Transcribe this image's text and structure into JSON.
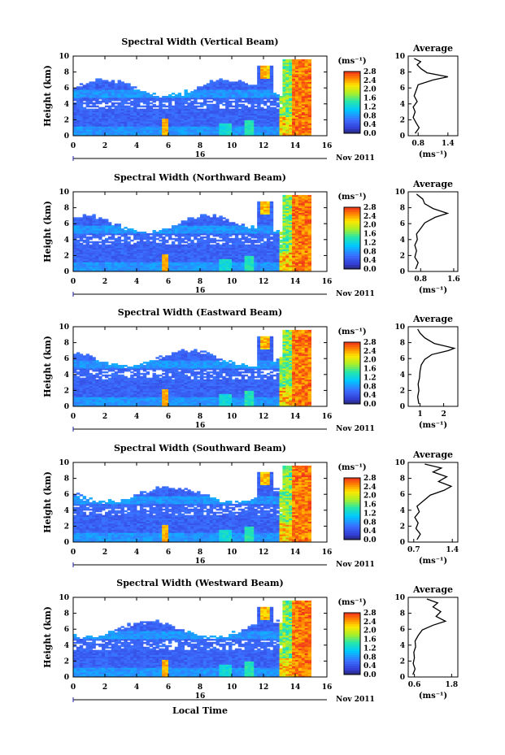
{
  "figure": {
    "xlabel": "Local Time",
    "colorbar_unit": "(ms⁻¹)",
    "average_title": "Average",
    "average_xlabel": "(ms⁻¹)",
    "ylabel": "Height (km)"
  },
  "chart_data": [
    {
      "type": "heatmap",
      "title": "Spectral Width (Vertical Beam)",
      "xlabel": "",
      "ylabel": "Height (km)",
      "x_ticks": [
        "0",
        "2",
        "4",
        "6",
        "8",
        "10",
        "12",
        "14",
        "16"
      ],
      "y_ticks": [
        "0",
        "2",
        "4",
        "6",
        "8",
        "10"
      ],
      "xlim": [
        0,
        16
      ],
      "ylim": [
        0,
        10
      ],
      "date_label": "Nov 2011",
      "date_day": "16",
      "colorbar": {
        "ticks": [
          "0.0",
          "0.4",
          "0.8",
          "1.2",
          "1.6",
          "2.0",
          "2.4",
          "2.8"
        ],
        "range": [
          0,
          2.8
        ]
      },
      "average": {
        "type": "line",
        "title": "Average",
        "xlabel": "(ms⁻¹)",
        "x_ticks": [
          "0.8",
          "1.4"
        ],
        "xlim": [
          0.6,
          1.6
        ],
        "ylim": [
          0,
          10
        ],
        "points": [
          [
            0.74,
            0.3
          ],
          [
            0.82,
            1.0
          ],
          [
            0.76,
            1.6
          ],
          [
            0.7,
            2.3
          ],
          [
            0.74,
            3.0
          ],
          [
            0.7,
            3.6
          ],
          [
            0.78,
            4.3
          ],
          [
            0.72,
            5.0
          ],
          [
            0.76,
            5.7
          ],
          [
            0.8,
            6.4
          ],
          [
            1.1,
            7.0
          ],
          [
            1.4,
            7.4
          ],
          [
            0.98,
            7.9
          ],
          [
            0.86,
            8.4
          ],
          [
            0.78,
            8.9
          ],
          [
            0.85,
            9.3
          ],
          [
            0.72,
            9.7
          ]
        ]
      }
    },
    {
      "type": "heatmap",
      "title": "Spectral Width (Northward Beam)",
      "xlabel": "",
      "ylabel": "Height (km)",
      "x_ticks": [
        "0",
        "2",
        "4",
        "6",
        "8",
        "10",
        "12",
        "14",
        "16"
      ],
      "y_ticks": [
        "0",
        "2",
        "4",
        "6",
        "8",
        "10"
      ],
      "xlim": [
        0,
        16
      ],
      "ylim": [
        0,
        10
      ],
      "date_label": "Nov 2011",
      "date_day": "16",
      "colorbar": {
        "ticks": [
          "0.0",
          "0.4",
          "0.8",
          "1.2",
          "1.6",
          "2.0",
          "2.4",
          "2.8"
        ],
        "range": [
          0,
          2.8
        ]
      },
      "average": {
        "type": "line",
        "title": "Average",
        "xlabel": "(ms⁻¹)",
        "x_ticks": [
          "0.8",
          "1.6"
        ],
        "xlim": [
          0.5,
          1.7
        ],
        "ylim": [
          0,
          10
        ],
        "points": [
          [
            0.68,
            0.3
          ],
          [
            0.74,
            1.1
          ],
          [
            0.66,
            1.8
          ],
          [
            0.7,
            2.6
          ],
          [
            0.66,
            3.3
          ],
          [
            0.72,
            4.0
          ],
          [
            0.7,
            4.7
          ],
          [
            0.8,
            5.4
          ],
          [
            0.9,
            6.1
          ],
          [
            1.15,
            6.8
          ],
          [
            1.45,
            7.3
          ],
          [
            1.1,
            7.9
          ],
          [
            0.9,
            8.5
          ],
          [
            0.85,
            9.1
          ],
          [
            0.7,
            9.7
          ]
        ]
      }
    },
    {
      "type": "heatmap",
      "title": "Spectral Width (Eastward Beam)",
      "xlabel": "",
      "ylabel": "Height (km)",
      "x_ticks": [
        "0",
        "2",
        "4",
        "6",
        "8",
        "10",
        "12",
        "14",
        "16"
      ],
      "y_ticks": [
        "0",
        "2",
        "4",
        "6",
        "8",
        "10"
      ],
      "xlim": [
        0,
        16
      ],
      "ylim": [
        0,
        10
      ],
      "date_label": "Nov 2011",
      "date_day": "16",
      "colorbar": {
        "ticks": [
          "0.0",
          "0.4",
          "0.8",
          "1.2",
          "1.6",
          "2.0",
          "2.4",
          "2.8"
        ],
        "range": [
          0,
          2.8
        ]
      },
      "average": {
        "type": "line",
        "title": "Average",
        "xlabel": "(ms⁻¹)",
        "x_ticks": [
          "1",
          "2"
        ],
        "xlim": [
          0.5,
          2.6
        ],
        "ylim": [
          0,
          10
        ],
        "points": [
          [
            0.95,
            0.3
          ],
          [
            0.9,
            1.2
          ],
          [
            0.95,
            2.0
          ],
          [
            0.92,
            2.8
          ],
          [
            0.98,
            3.6
          ],
          [
            1.0,
            4.4
          ],
          [
            1.05,
            5.2
          ],
          [
            1.2,
            5.9
          ],
          [
            1.5,
            6.5
          ],
          [
            2.2,
            7.0
          ],
          [
            2.45,
            7.3
          ],
          [
            1.6,
            7.9
          ],
          [
            1.2,
            8.6
          ],
          [
            1.0,
            9.2
          ],
          [
            0.9,
            9.7
          ]
        ]
      }
    },
    {
      "type": "heatmap",
      "title": "Spectral Width (Southward Beam)",
      "xlabel": "",
      "ylabel": "Height (km)",
      "x_ticks": [
        "0",
        "2",
        "4",
        "6",
        "8",
        "10",
        "12",
        "14",
        "16"
      ],
      "y_ticks": [
        "0",
        "2",
        "4",
        "6",
        "8",
        "10"
      ],
      "xlim": [
        0,
        16
      ],
      "ylim": [
        0,
        10
      ],
      "date_label": "Nov 2011",
      "date_day": "16",
      "colorbar": {
        "ticks": [
          "0.0",
          "0.4",
          "0.8",
          "1.2",
          "1.6",
          "2.0",
          "2.4",
          "2.8"
        ],
        "range": [
          0,
          2.8
        ]
      },
      "average": {
        "type": "line",
        "title": "Average",
        "xlabel": "(ms⁻¹)",
        "x_ticks": [
          "0.7",
          "1.4"
        ],
        "xlim": [
          0.6,
          1.5
        ],
        "ylim": [
          0,
          10
        ],
        "points": [
          [
            0.76,
            0.3
          ],
          [
            0.82,
            1.0
          ],
          [
            0.74,
            1.7
          ],
          [
            0.78,
            2.4
          ],
          [
            0.72,
            3.1
          ],
          [
            0.8,
            3.8
          ],
          [
            0.76,
            4.5
          ],
          [
            0.88,
            5.2
          ],
          [
            1.0,
            5.9
          ],
          [
            1.25,
            6.5
          ],
          [
            1.38,
            7.0
          ],
          [
            1.15,
            7.6
          ],
          [
            1.3,
            8.2
          ],
          [
            1.05,
            8.8
          ],
          [
            1.2,
            9.3
          ],
          [
            0.9,
            9.8
          ]
        ]
      }
    },
    {
      "type": "heatmap",
      "title": "Spectral Width (Westward Beam)",
      "xlabel": "Local Time",
      "ylabel": "Height (km)",
      "x_ticks": [
        "0",
        "2",
        "4",
        "6",
        "8",
        "10",
        "12",
        "14",
        "16"
      ],
      "y_ticks": [
        "0",
        "2",
        "4",
        "6",
        "8",
        "10"
      ],
      "xlim": [
        0,
        16
      ],
      "ylim": [
        0,
        10
      ],
      "date_label": "Nov 2011",
      "date_day": "16",
      "colorbar": {
        "ticks": [
          "0.0",
          "0.4",
          "0.8",
          "1.2",
          "1.6",
          "2.0",
          "2.4",
          "2.8"
        ],
        "range": [
          0,
          2.8
        ]
      },
      "average": {
        "type": "line",
        "title": "Average",
        "xlabel": "(ms⁻¹)",
        "x_ticks": [
          "0.6",
          "1.8"
        ],
        "xlim": [
          0.4,
          2.0
        ],
        "ylim": [
          0,
          10
        ],
        "points": [
          [
            0.55,
            0.3
          ],
          [
            0.62,
            1.0
          ],
          [
            0.56,
            1.7
          ],
          [
            0.6,
            2.4
          ],
          [
            0.58,
            3.1
          ],
          [
            0.64,
            3.8
          ],
          [
            0.62,
            4.5
          ],
          [
            0.72,
            5.2
          ],
          [
            0.85,
            5.9
          ],
          [
            1.2,
            6.5
          ],
          [
            1.6,
            7.0
          ],
          [
            1.3,
            7.6
          ],
          [
            1.45,
            8.2
          ],
          [
            1.2,
            8.8
          ],
          [
            1.35,
            9.3
          ],
          [
            1.0,
            9.8
          ]
        ]
      }
    }
  ]
}
